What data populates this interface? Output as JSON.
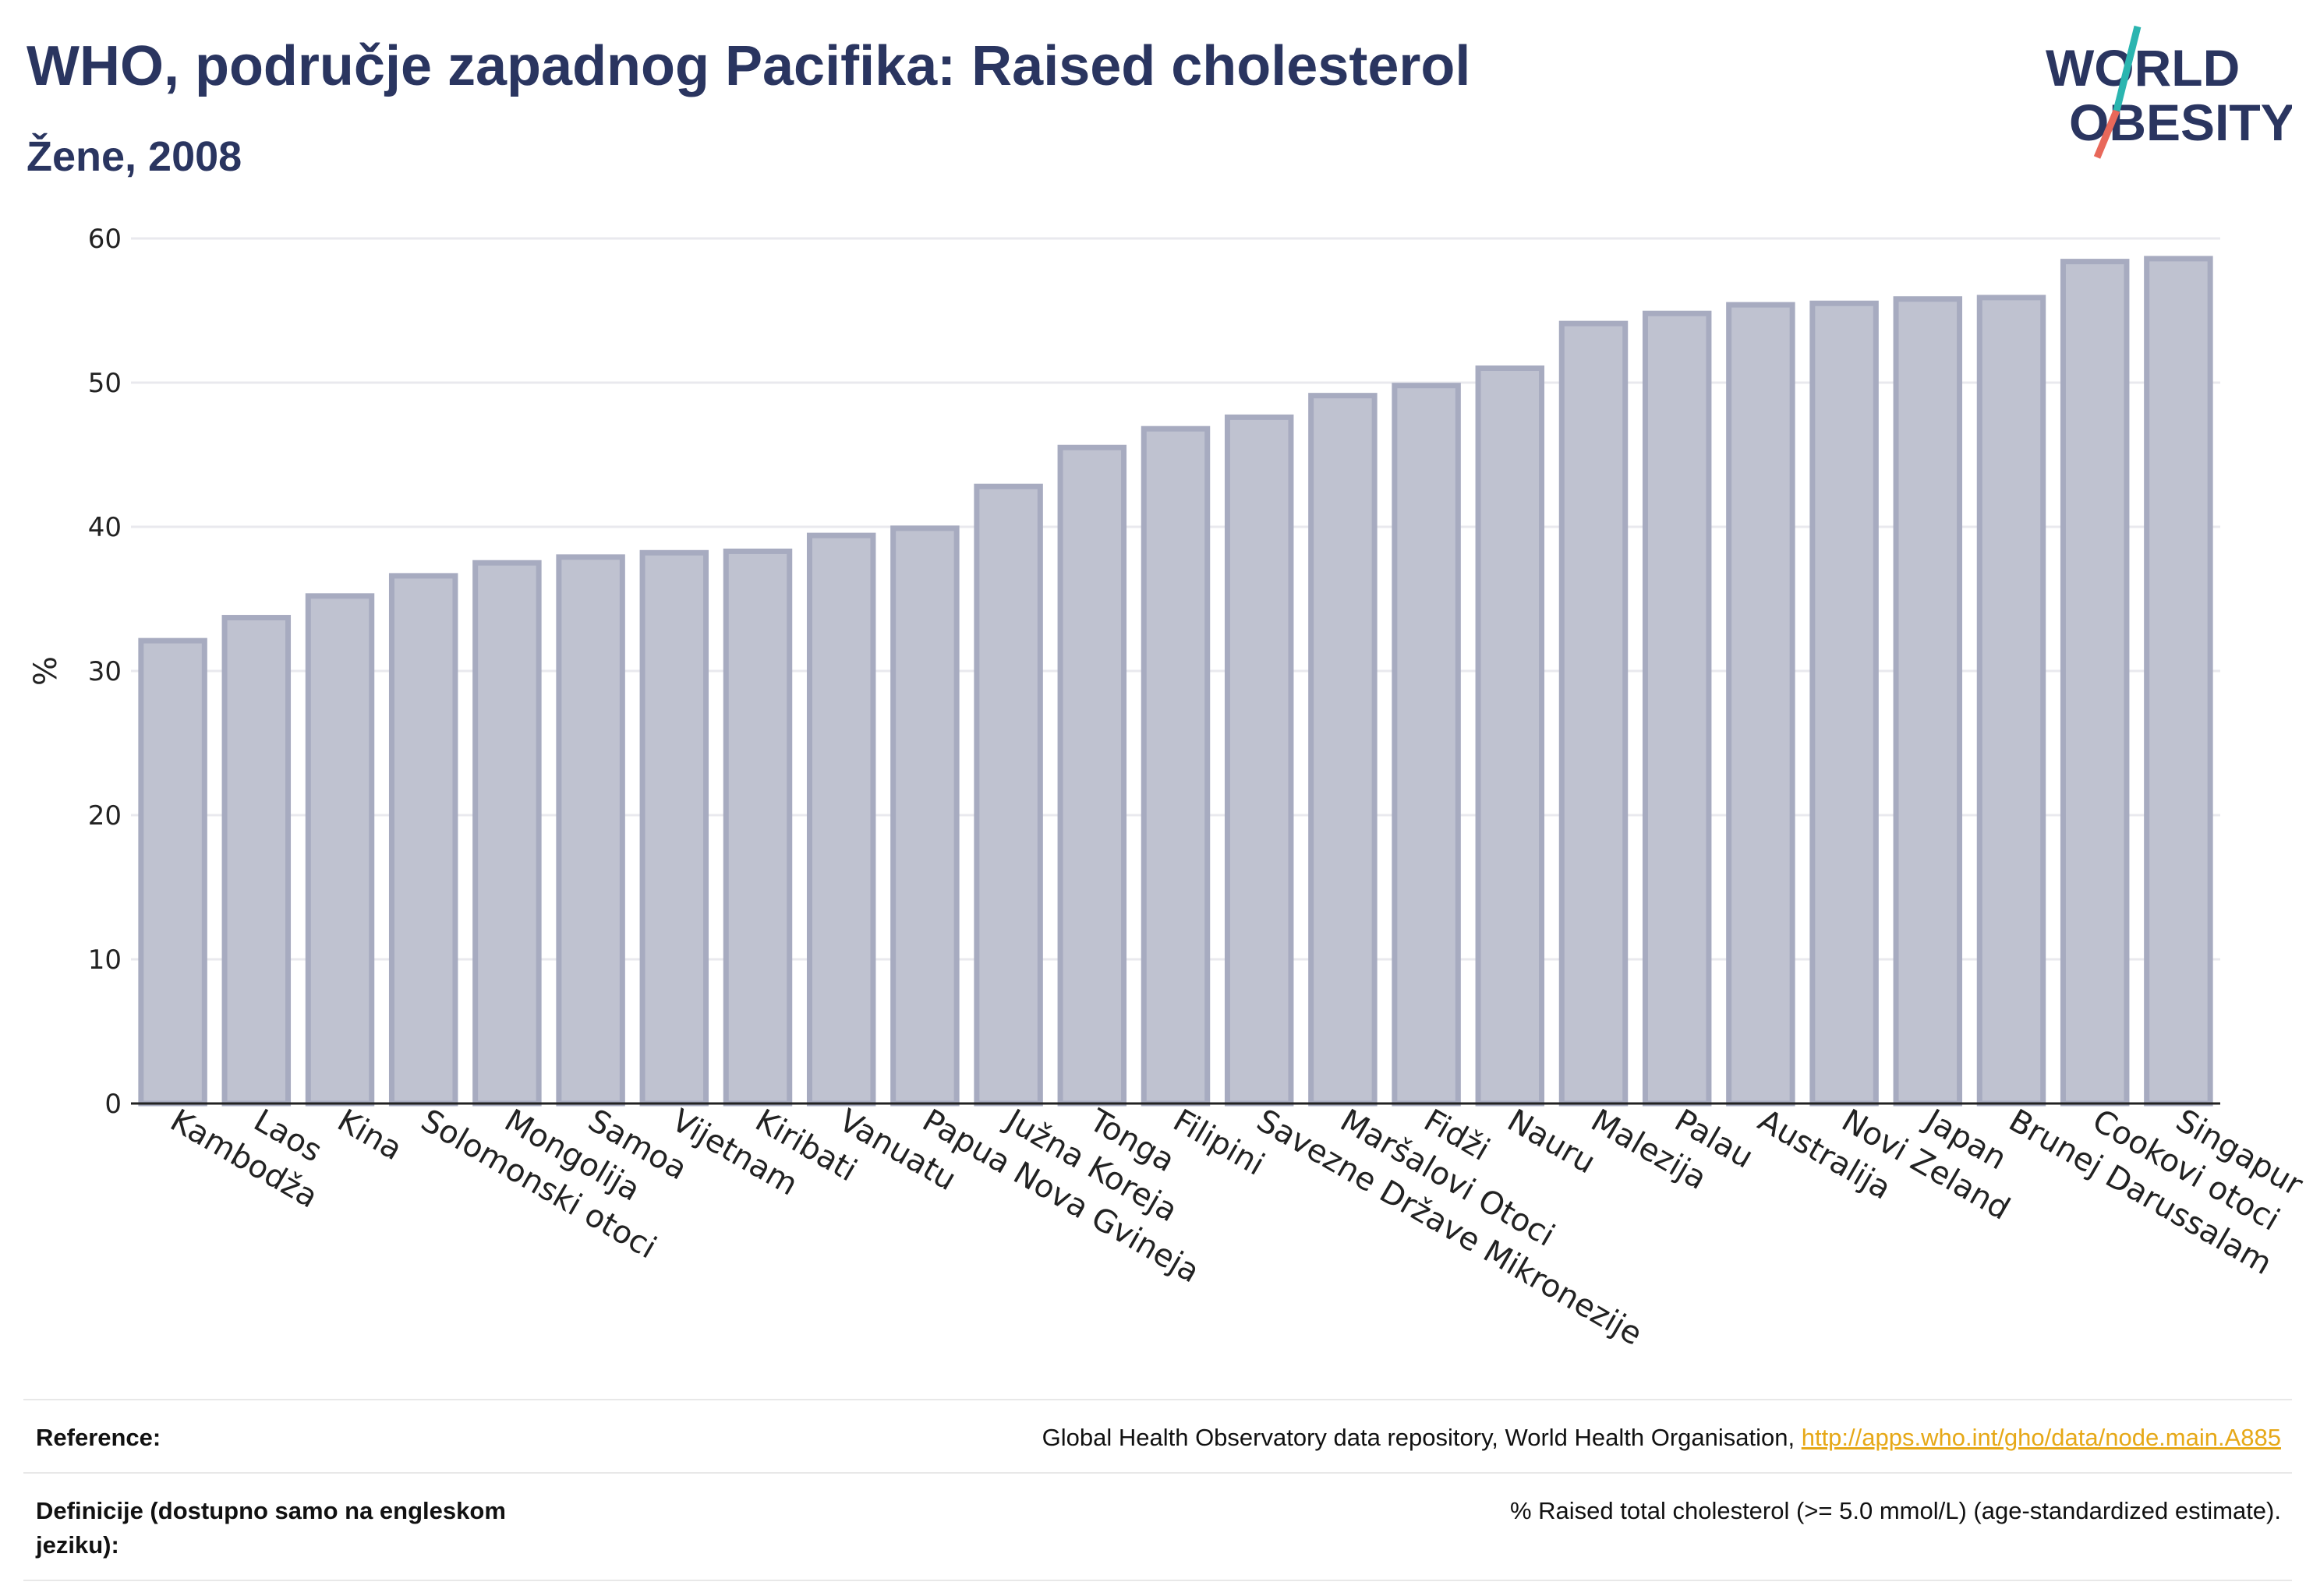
{
  "title": "WHO, područje zapadnog Pacifika: Raised cholesterol",
  "subtitle": "Žene, 2008",
  "logo": {
    "line1": "WORLD",
    "line2": "OBESITY",
    "accent_teal": "#2bb5b0",
    "accent_red": "#e8685a",
    "text_color": "#2a3560"
  },
  "chart_data": {
    "type": "bar",
    "title": "WHO, područje zapadnog Pacifika: Raised cholesterol",
    "subtitle": "Žene, 2008",
    "xlabel": "",
    "ylabel": "%",
    "ylim": [
      0,
      60
    ],
    "yticks": [
      0,
      10,
      20,
      30,
      40,
      50,
      60
    ],
    "grid": true,
    "bar_fill": "#bfc2d0",
    "bar_stroke": "#a7abc0",
    "categories": [
      "Kambodža",
      "Laos",
      "Kina",
      "Solomonski otoci",
      "Mongolija",
      "Samoa",
      "Vijetnam",
      "Kiribati",
      "Vanuatu",
      "Papua Nova Gvineja",
      "Južna Koreja",
      "Tonga",
      "Filipini",
      "Savezne Države Mikronezije",
      "Maršalovi Otoci",
      "Fidži",
      "Nauru",
      "Malezija",
      "Palau",
      "Australija",
      "Novi Zeland",
      "Japan",
      "Brunej Darussalam",
      "Cookovi otoci",
      "Singapur"
    ],
    "values": [
      32.1,
      33.7,
      35.2,
      36.6,
      37.5,
      37.9,
      38.2,
      38.3,
      39.4,
      39.9,
      42.8,
      45.5,
      46.8,
      47.6,
      49.1,
      49.8,
      51.0,
      54.1,
      54.8,
      55.4,
      55.5,
      55.8,
      55.9,
      58.4,
      58.6
    ]
  },
  "footer": {
    "reference_label": "Reference:",
    "reference_text": "Global Health Observatory data repository, World Health Organisation, ",
    "reference_link": "http://apps.who.int/gho/data/node.main.A885",
    "definitions_label": "Definicije (dostupno samo na engleskom jeziku):",
    "definitions_text": "% Raised total cholesterol (>= 5.0 mmol/L) (age-standardized estimate)."
  }
}
